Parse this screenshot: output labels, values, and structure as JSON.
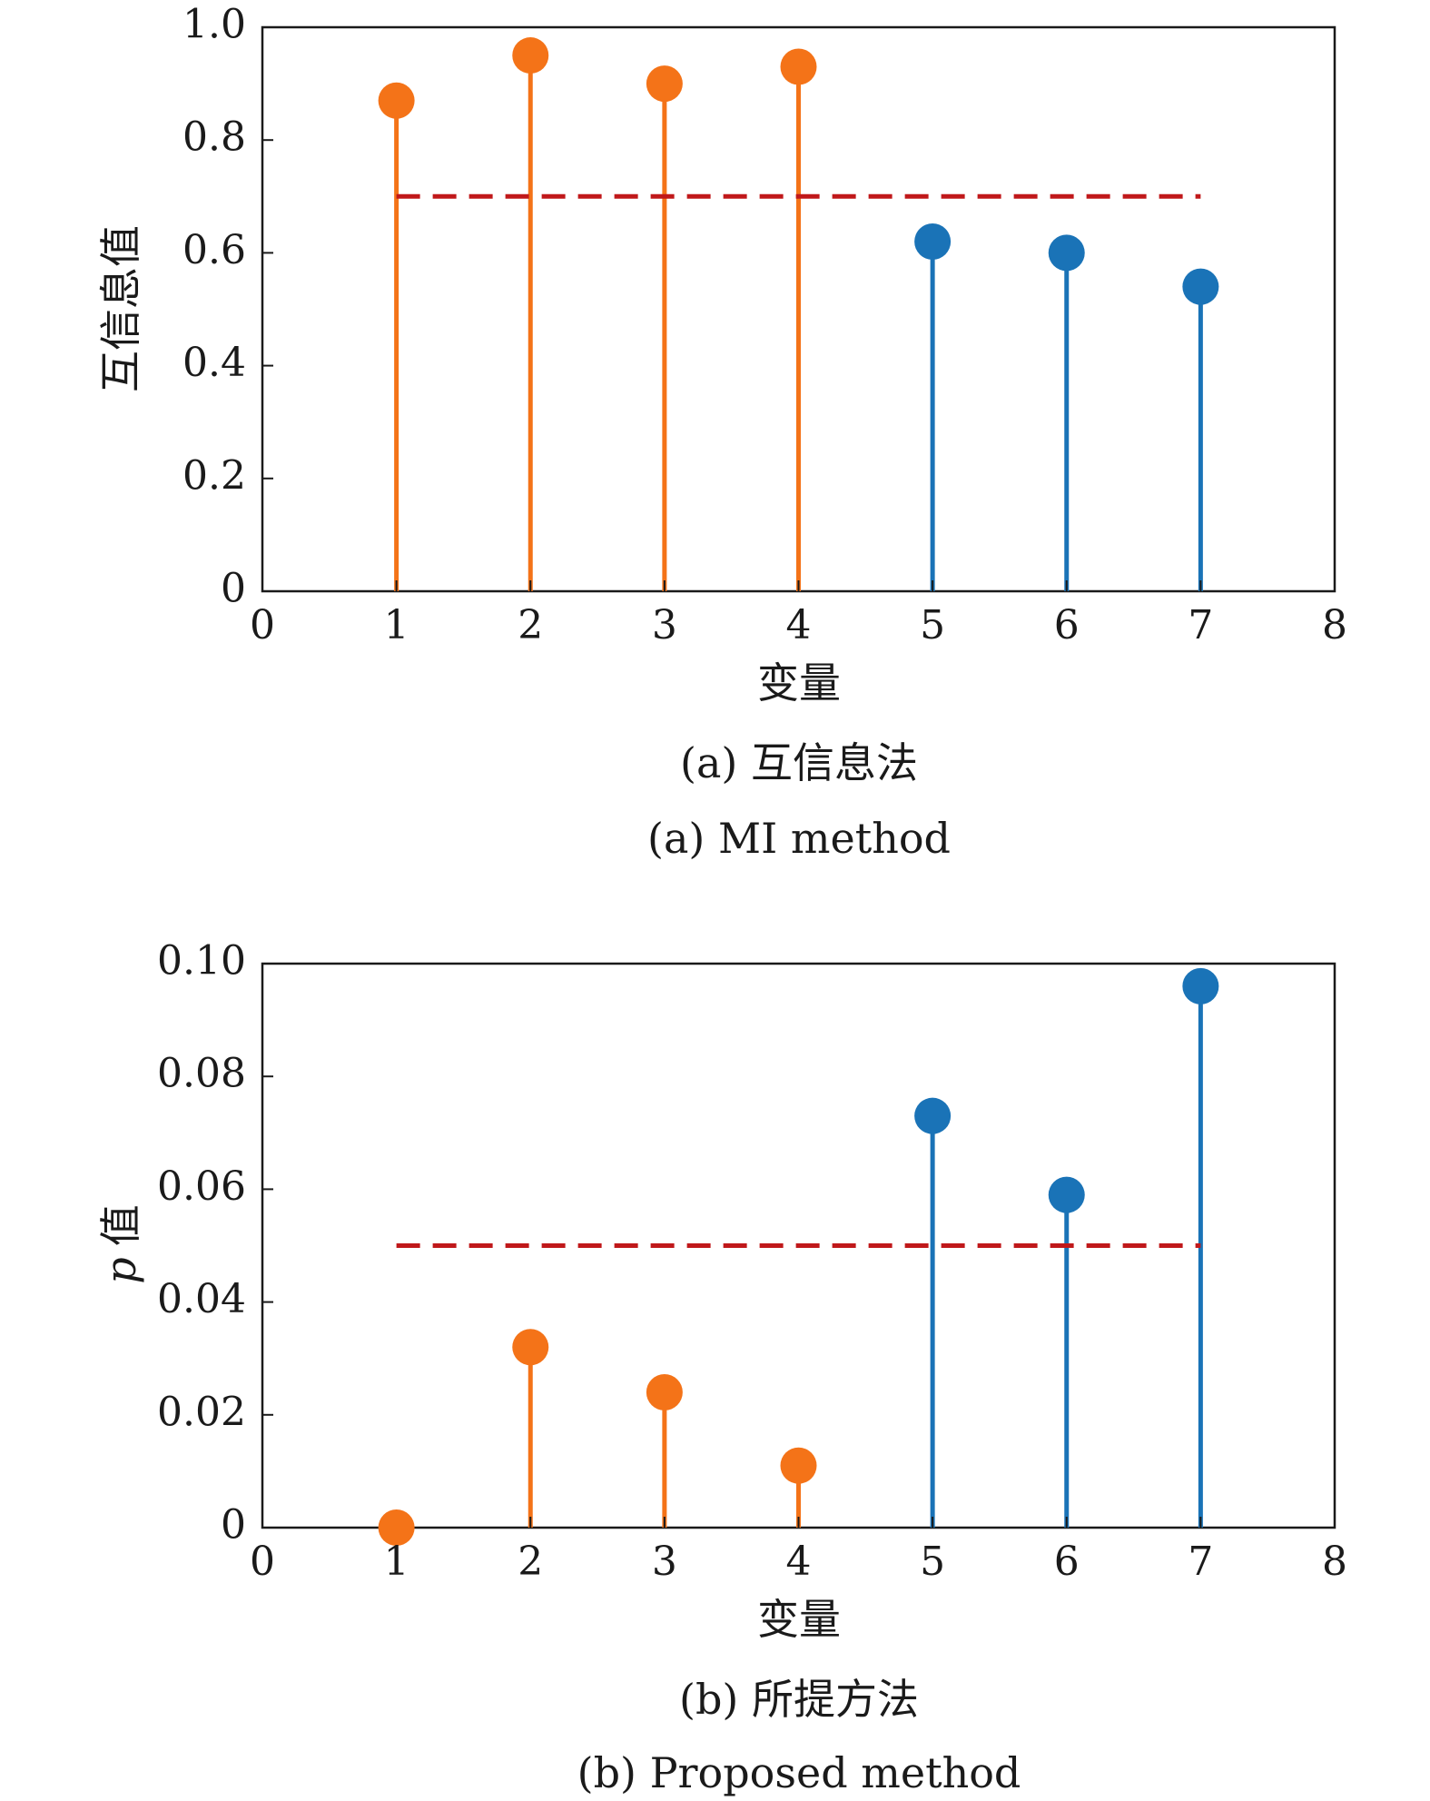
{
  "chart_data": [
    {
      "type": "stem",
      "ylabel": "互信息值",
      "xlabel": "变量",
      "caption_cn": "(a) 互信息法",
      "caption_en": "(a) MI method",
      "x": [
        1,
        2,
        3,
        4,
        5,
        6,
        7
      ],
      "values": [
        0.87,
        0.95,
        0.9,
        0.93,
        0.62,
        0.6,
        0.54
      ],
      "point_colors": [
        "#f47318",
        "#f47318",
        "#f47318",
        "#f47318",
        "#1a73b7",
        "#1a73b7",
        "#1a73b7"
      ],
      "threshold": {
        "value": 0.7,
        "x_range": [
          1,
          7
        ],
        "color": "#c0181a",
        "style": "dashed"
      },
      "xlim": [
        0,
        8
      ],
      "ylim": [
        0,
        1.0
      ],
      "xticks": [
        "0",
        "1",
        "2",
        "3",
        "4",
        "5",
        "6",
        "7",
        "8"
      ],
      "yticks": [
        "0",
        "0.2",
        "0.4",
        "0.6",
        "0.8",
        "1.0"
      ],
      "ytick_values": [
        0,
        0.2,
        0.4,
        0.6,
        0.8,
        1.0
      ],
      "grid": false
    },
    {
      "type": "stem",
      "ylabel_var": "p",
      "ylabel": "值",
      "xlabel": "变量",
      "caption_cn": "(b) 所提方法",
      "caption_en": "(b) Proposed method",
      "x": [
        1,
        2,
        3,
        4,
        5,
        6,
        7
      ],
      "values": [
        0.0,
        0.032,
        0.024,
        0.011,
        0.073,
        0.059,
        0.096
      ],
      "point_colors": [
        "#f47318",
        "#f47318",
        "#f47318",
        "#f47318",
        "#1a73b7",
        "#1a73b7",
        "#1a73b7"
      ],
      "threshold": {
        "value": 0.05,
        "x_range": [
          1,
          7
        ],
        "color": "#c0181a",
        "style": "dashed"
      },
      "xlim": [
        0,
        8
      ],
      "ylim": [
        0,
        0.1
      ],
      "xticks": [
        "0",
        "1",
        "2",
        "3",
        "4",
        "5",
        "6",
        "7",
        "8"
      ],
      "yticks": [
        "0",
        "0.02",
        "0.04",
        "0.06",
        "0.08",
        "0.10"
      ],
      "ytick_values": [
        0,
        0.02,
        0.04,
        0.06,
        0.08,
        0.1
      ],
      "grid": false
    }
  ]
}
